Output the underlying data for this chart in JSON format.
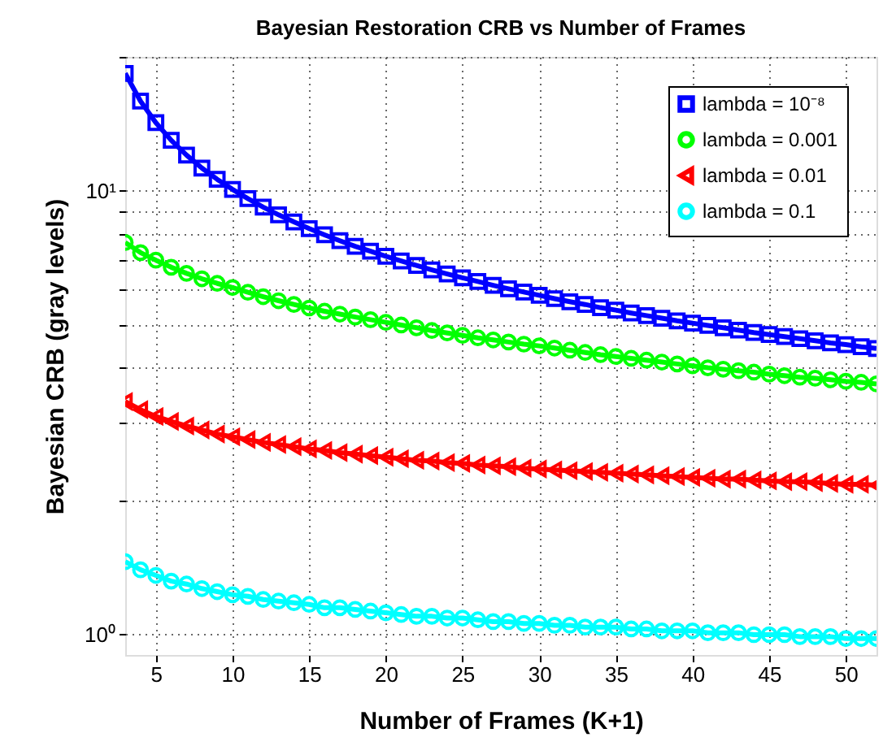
{
  "chart_data": {
    "type": "line",
    "title": "Bayesian Restoration CRB vs Number of Frames",
    "xlabel": "Number of Frames (K+1)",
    "ylabel": "Bayesian CRB (gray levels)",
    "x": [
      3,
      4,
      5,
      6,
      7,
      8,
      9,
      10,
      11,
      12,
      13,
      14,
      15,
      16,
      17,
      18,
      19,
      20,
      21,
      22,
      23,
      24,
      25,
      26,
      27,
      28,
      29,
      30,
      31,
      32,
      33,
      34,
      35,
      36,
      37,
      38,
      39,
      40,
      41,
      42,
      43,
      44,
      45,
      46,
      47,
      48,
      49,
      50,
      51,
      52
    ],
    "series": [
      {
        "name": "lambda = 10⁻⁸",
        "color": "#0000ff",
        "marker": "square",
        "values": [
          18.36,
          15.9,
          14.22,
          12.98,
          12.02,
          11.24,
          10.6,
          10.06,
          9.59,
          9.18,
          8.82,
          8.5,
          8.21,
          7.95,
          7.71,
          7.49,
          7.3,
          7.11,
          6.94,
          6.78,
          6.63,
          6.49,
          6.36,
          6.24,
          6.12,
          6.01,
          5.91,
          5.81,
          5.71,
          5.62,
          5.54,
          5.45,
          5.38,
          5.3,
          5.23,
          5.16,
          5.09,
          5.03,
          4.97,
          4.91,
          4.85,
          4.79,
          4.74,
          4.69,
          4.64,
          4.59,
          4.54,
          4.5,
          4.45,
          4.41
        ]
      },
      {
        "name": "lambda = 0.001",
        "color": "#00ff00",
        "marker": "circle",
        "values": [
          7.64,
          7.25,
          6.97,
          6.72,
          6.51,
          6.33,
          6.18,
          6.05,
          5.9,
          5.77,
          5.65,
          5.54,
          5.44,
          5.35,
          5.27,
          5.19,
          5.12,
          5.05,
          4.98,
          4.91,
          4.84,
          4.78,
          4.72,
          4.66,
          4.61,
          4.56,
          4.51,
          4.47,
          4.42,
          4.37,
          4.32,
          4.27,
          4.23,
          4.19,
          4.15,
          4.11,
          4.07,
          4.03,
          3.99,
          3.96,
          3.93,
          3.9,
          3.86,
          3.83,
          3.8,
          3.78,
          3.75,
          3.72,
          3.7,
          3.67
        ]
      },
      {
        "name": "lambda = 0.01",
        "color": "#ff0000",
        "marker": "triangle",
        "values": [
          3.35,
          3.21,
          3.1,
          3.02,
          2.95,
          2.89,
          2.83,
          2.79,
          2.75,
          2.71,
          2.68,
          2.65,
          2.62,
          2.6,
          2.57,
          2.55,
          2.53,
          2.51,
          2.49,
          2.47,
          2.46,
          2.44,
          2.43,
          2.41,
          2.4,
          2.39,
          2.37,
          2.36,
          2.35,
          2.34,
          2.33,
          2.32,
          2.31,
          2.3,
          2.29,
          2.28,
          2.27,
          2.26,
          2.25,
          2.24,
          2.24,
          2.23,
          2.22,
          2.21,
          2.21,
          2.2,
          2.19,
          2.18,
          2.18,
          2.17
        ]
      },
      {
        "name": "lambda = 0.1",
        "color": "#00ffff",
        "marker": "circle",
        "values": [
          1.46,
          1.4,
          1.36,
          1.32,
          1.3,
          1.27,
          1.25,
          1.23,
          1.22,
          1.2,
          1.19,
          1.18,
          1.17,
          1.15,
          1.15,
          1.14,
          1.13,
          1.12,
          1.11,
          1.1,
          1.1,
          1.09,
          1.09,
          1.08,
          1.07,
          1.07,
          1.06,
          1.06,
          1.05,
          1.05,
          1.04,
          1.04,
          1.04,
          1.03,
          1.03,
          1.02,
          1.02,
          1.02,
          1.01,
          1.01,
          1.01,
          1.0,
          1.0,
          1.0,
          0.99,
          0.99,
          0.99,
          0.98,
          0.98,
          0.98
        ]
      }
    ],
    "log": "y",
    "xlim": [
      3,
      52
    ],
    "xticks": [
      5,
      10,
      15,
      20,
      25,
      30,
      35,
      40,
      45,
      50
    ],
    "ylim": [
      0.9,
      20
    ],
    "yticks": [
      {
        "value": 1,
        "label": "10⁰"
      },
      {
        "value": 2,
        "label": null
      },
      {
        "value": 3,
        "label": null
      },
      {
        "value": 4,
        "label": null
      },
      {
        "value": 5,
        "label": null
      },
      {
        "value": 6,
        "label": null
      },
      {
        "value": 7,
        "label": null
      },
      {
        "value": 8,
        "label": null
      },
      {
        "value": 9,
        "label": null
      },
      {
        "value": 10,
        "label": "10¹"
      },
      {
        "value": 20,
        "label": null
      }
    ],
    "grid": true,
    "legend": "top right",
    "line_style": "solid"
  }
}
